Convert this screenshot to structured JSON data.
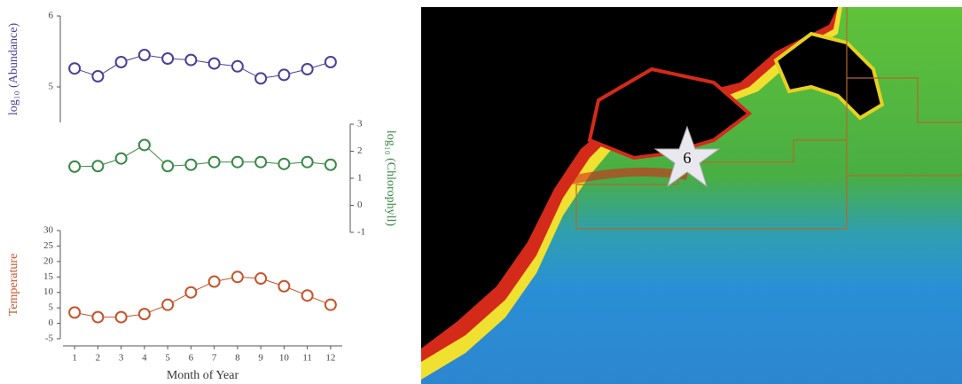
{
  "chart_data": [
    {
      "type": "line",
      "y_label": "log₁₀ (Abundance)",
      "axis_side": "left",
      "color": "#4b3f98",
      "x": [
        1,
        2,
        3,
        4,
        5,
        6,
        7,
        8,
        9,
        10,
        11,
        12
      ],
      "values": [
        5.26,
        5.15,
        5.35,
        5.45,
        5.4,
        5.38,
        5.33,
        5.29,
        5.12,
        5.17,
        5.25,
        5.35
      ],
      "xlim": [
        0.5,
        12.5
      ],
      "ylim": [
        4.5,
        6
      ],
      "yticks": [
        5,
        6
      ]
    },
    {
      "type": "line",
      "y_label": "log₁₀ (Chlorophyll)",
      "axis_side": "right",
      "color": "#3a8a48",
      "x": [
        1,
        2,
        3,
        4,
        5,
        6,
        7,
        8,
        9,
        10,
        11,
        12
      ],
      "values": [
        1.43,
        1.45,
        1.73,
        2.23,
        1.45,
        1.5,
        1.6,
        1.6,
        1.6,
        1.53,
        1.6,
        1.5
      ],
      "xlim": [
        0.5,
        12.5
      ],
      "ylim": [
        -1,
        3
      ],
      "yticks": [
        -1,
        0,
        1,
        2,
        3
      ]
    },
    {
      "type": "line",
      "y_label": "Temperature",
      "axis_side": "left",
      "color": "#c9532b",
      "x": [
        1,
        2,
        3,
        4,
        5,
        6,
        7,
        8,
        9,
        10,
        11,
        12
      ],
      "values": [
        3.5,
        2,
        2,
        3,
        6,
        10,
        13.5,
        15,
        14.5,
        12,
        9,
        6
      ],
      "xlim": [
        0.5,
        12.5
      ],
      "ylim": [
        -5,
        30
      ],
      "yticks": [
        -5,
        0,
        5,
        10,
        15,
        20,
        25,
        30
      ],
      "xticks": [
        1,
        2,
        3,
        4,
        5,
        6,
        7,
        8,
        9,
        10,
        11,
        12
      ],
      "x_label": "Month of Year"
    }
  ],
  "map": {
    "marker_label": "6"
  }
}
